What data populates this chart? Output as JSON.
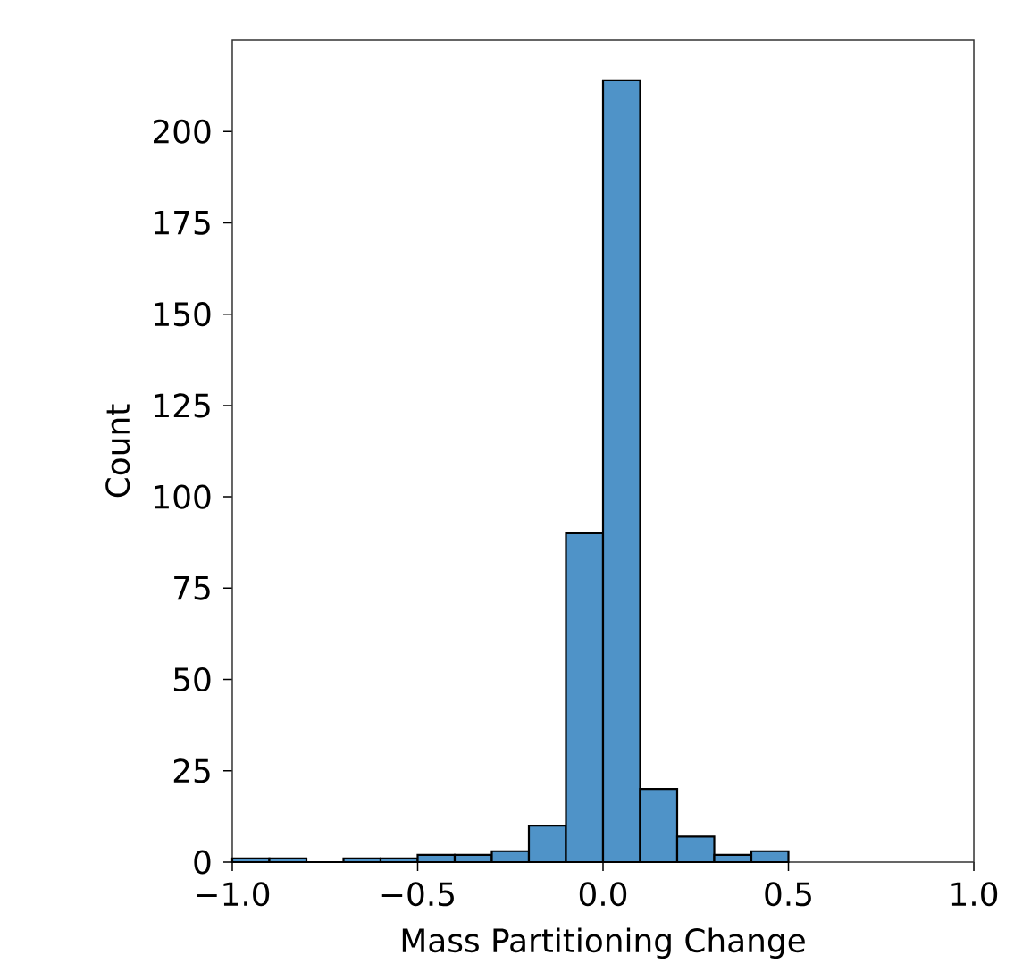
{
  "chart_data": {
    "type": "histogram",
    "xlabel": "Mass Partitioning Change",
    "ylabel": "Count",
    "bins": [
      -1.0,
      -0.9,
      -0.8,
      -0.7,
      -0.6,
      -0.5,
      -0.4,
      -0.3,
      -0.2,
      -0.1,
      0.0,
      0.1,
      0.2,
      0.3,
      0.4,
      0.5
    ],
    "values": [
      1,
      1,
      0,
      1,
      1,
      2,
      2,
      3,
      10,
      90,
      214,
      20,
      7,
      2,
      3
    ],
    "color": "#4f93c8",
    "xlim": [
      -1.0,
      1.0
    ],
    "ylim": [
      0,
      225
    ],
    "xticks": [
      {
        "value": -1.0,
        "label": "−1.0"
      },
      {
        "value": -0.5,
        "label": "−0.5"
      },
      {
        "value": 0.0,
        "label": "0.0"
      },
      {
        "value": 0.5,
        "label": "0.5"
      },
      {
        "value": 1.0,
        "label": "1.0"
      }
    ],
    "yticks": [
      0,
      25,
      50,
      75,
      100,
      125,
      150,
      175,
      200
    ]
  }
}
